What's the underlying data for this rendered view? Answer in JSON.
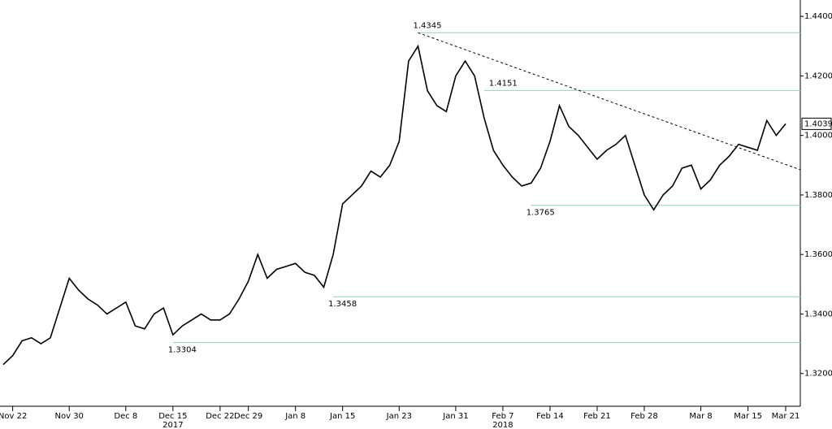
{
  "chart_data": {
    "type": "line",
    "categories": [
      null,
      "Nov 22",
      null,
      null,
      null,
      null,
      null,
      "Nov 30",
      null,
      null,
      null,
      null,
      null,
      "Dec 8",
      null,
      null,
      null,
      null,
      "Dec 15",
      null,
      null,
      null,
      null,
      "Dec 22",
      null,
      null,
      "Dec 29",
      null,
      null,
      null,
      null,
      "Jan 8",
      null,
      null,
      null,
      null,
      "Jan 15",
      null,
      null,
      null,
      null,
      null,
      "Jan 23",
      null,
      null,
      null,
      null,
      null,
      "Jan 31",
      null,
      null,
      null,
      null,
      "Feb 7",
      null,
      null,
      null,
      null,
      "Feb 14",
      null,
      null,
      null,
      null,
      "Feb 21",
      null,
      null,
      null,
      null,
      "Feb 28",
      null,
      null,
      null,
      null,
      null,
      "Mar 8",
      null,
      null,
      null,
      null,
      "Mar 15",
      null,
      null,
      null,
      "Mar 21"
    ],
    "series": [
      {
        "color": "#000000",
        "values": [
          1.323,
          1.326,
          1.331,
          1.332,
          1.33,
          1.332,
          1.342,
          1.352,
          1.348,
          1.345,
          1.343,
          1.34,
          1.342,
          1.344,
          1.336,
          1.335,
          1.34,
          1.342,
          1.333,
          1.336,
          1.338,
          1.34,
          1.338,
          1.338,
          1.34,
          1.345,
          1.351,
          1.36,
          1.352,
          1.355,
          1.356,
          1.357,
          1.354,
          1.353,
          1.349,
          1.36,
          1.377,
          1.38,
          1.383,
          1.388,
          1.386,
          1.39,
          1.398,
          1.425,
          1.43,
          1.415,
          1.41,
          1.408,
          1.42,
          1.425,
          1.42,
          1.406,
          1.395,
          1.39,
          1.386,
          1.383,
          1.384,
          1.389,
          1.398,
          1.41,
          1.403,
          1.4,
          1.396,
          1.392,
          1.395,
          1.397,
          1.4,
          1.39,
          1.38,
          1.375,
          1.38,
          1.383,
          1.389,
          1.39,
          1.382,
          1.385,
          1.39,
          1.393,
          1.397,
          1.396,
          1.395,
          1.405,
          1.4,
          1.4039
        ]
      }
    ],
    "year_labels": [
      "2017",
      "2018"
    ],
    "levels": [
      1.4345,
      1.4151,
      1.3765,
      1.3458,
      1.3304
    ],
    "ylim": [
      1.309,
      1.4455
    ],
    "yticks": [
      {
        "value": 1.32,
        "label": "1.3200"
      },
      {
        "value": 1.34,
        "label": "1.3400"
      },
      {
        "value": 1.36,
        "label": "1.3600"
      },
      {
        "value": 1.38,
        "label": "1.3800"
      },
      {
        "value": 1.4,
        "label": "1.4000"
      },
      {
        "value": 1.42,
        "label": "1.4200"
      },
      {
        "value": 1.44,
        "label": "1.4400"
      }
    ],
    "level_color": "#8fd3c3"
  }
}
